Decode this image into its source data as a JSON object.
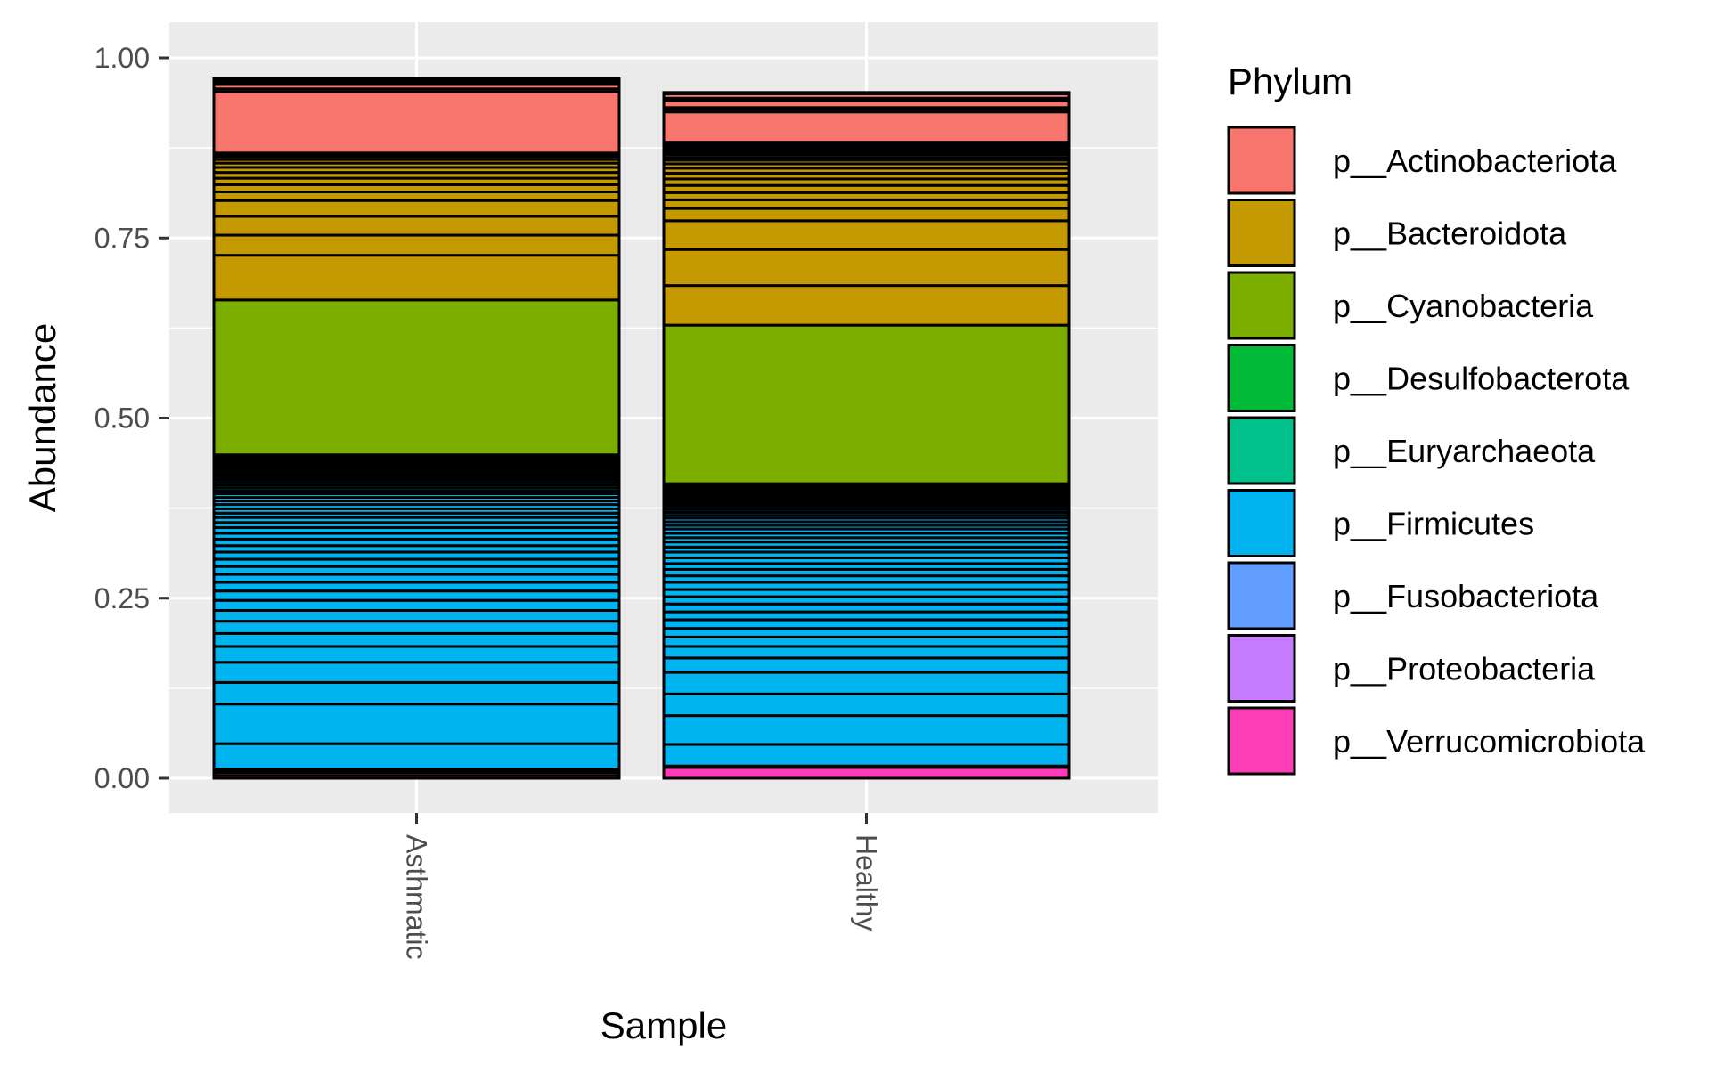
{
  "chart_data": {
    "type": "bar",
    "stacked": true,
    "xlabel": "Sample",
    "ylabel": "Abundance",
    "ylim": [
      0,
      1
    ],
    "yticks": [
      "0.00",
      "0.25",
      "0.50",
      "0.75",
      "1.00"
    ],
    "categories": [
      "Asthmatic",
      "Healthy"
    ],
    "grid": true,
    "legend": {
      "title": "Phylum",
      "position": "right",
      "entries": [
        {
          "name": "p__Actinobacteriota",
          "color": "#F8766D"
        },
        {
          "name": "p__Bacteroidota",
          "color": "#C49A00"
        },
        {
          "name": "p__Cyanobacteria",
          "color": "#7CAE00"
        },
        {
          "name": "p__Desulfobacterota",
          "color": "#00BA38"
        },
        {
          "name": "p__Euryarchaeota",
          "color": "#00C08B"
        },
        {
          "name": "p__Firmicutes",
          "color": "#00B4EF"
        },
        {
          "name": "p__Fusobacteriota",
          "color": "#619CFF"
        },
        {
          "name": "p__Proteobacteria",
          "color": "#C77CFF"
        },
        {
          "name": "p__Verrucomicrobiota",
          "color": "#FF3DB8"
        }
      ]
    },
    "series": [
      {
        "sample": "Asthmatic",
        "segments": [
          {
            "phylum": "p__Verrucomicrobiota",
            "values": [
              0.004,
              0.004,
              0.003
            ]
          },
          {
            "phylum": "p__Proteobacteria",
            "values": [
              0.001
            ]
          },
          {
            "phylum": "p__Fusobacteriota",
            "values": [
              0.001
            ]
          },
          {
            "phylum": "p__Firmicutes",
            "values": [
              0.035,
              0.055,
              0.03,
              0.028,
              0.022,
              0.018,
              0.017,
              0.015,
              0.014,
              0.013,
              0.012,
              0.011,
              0.011,
              0.01,
              0.01,
              0.009,
              0.009,
              0.008,
              0.008,
              0.007,
              0.007,
              0.006,
              0.006,
              0.006,
              0.005,
              0.005,
              0.005,
              0.004,
              0.004,
              0.004,
              0.004,
              0.003,
              0.003,
              0.003,
              0.003,
              0.003,
              0.002,
              0.002,
              0.002,
              0.002,
              0.002,
              0.002,
              0.001,
              0.001,
              0.001,
              0.001,
              0.001,
              0.001
            ]
          },
          {
            "phylum": "p__Euryarchaeota",
            "values": [
              0.002
            ]
          },
          {
            "phylum": "p__Desulfobacterota",
            "values": [
              0.003
            ]
          },
          {
            "phylum": "p__Cyanobacteria",
            "values": [
              0.215
            ]
          },
          {
            "phylum": "p__Bacteroidota",
            "values": [
              0.062,
              0.028,
              0.026,
              0.022,
              0.012,
              0.01,
              0.009,
              0.008,
              0.007,
              0.006,
              0.005,
              0.004,
              0.003,
              0.002
            ]
          },
          {
            "phylum": "p__Actinobacteriota",
            "values": [
              0.085,
              0.004,
              0.006,
              0.003,
              0.003,
              0.002
            ]
          }
        ]
      },
      {
        "sample": "Healthy",
        "segments": [
          {
            "phylum": "p__Verrucomicrobiota",
            "values": [
              0.015
            ]
          },
          {
            "phylum": "p__Proteobacteria",
            "values": [
              0.001
            ]
          },
          {
            "phylum": "p__Fusobacteriota",
            "values": [
              0.001
            ]
          },
          {
            "phylum": "p__Firmicutes",
            "values": [
              0.03,
              0.04,
              0.03,
              0.03,
              0.02,
              0.016,
              0.013,
              0.012,
              0.012,
              0.011,
              0.011,
              0.01,
              0.01,
              0.01,
              0.009,
              0.009,
              0.008,
              0.008,
              0.008,
              0.007,
              0.007,
              0.006,
              0.006,
              0.006,
              0.005,
              0.005,
              0.005,
              0.004,
              0.004,
              0.004,
              0.004,
              0.003,
              0.003,
              0.003,
              0.003,
              0.002,
              0.002,
              0.002,
              0.002,
              0.002,
              0.001,
              0.001,
              0.001,
              0.001,
              0.001
            ]
          },
          {
            "phylum": "p__Euryarchaeota",
            "values": [
              0.002
            ]
          },
          {
            "phylum": "p__Desulfobacterota",
            "values": [
              0.003
            ]
          },
          {
            "phylum": "p__Cyanobacteria",
            "values": [
              0.22
            ]
          },
          {
            "phylum": "p__Bacteroidota",
            "values": [
              0.055,
              0.05,
              0.04,
              0.017,
              0.012,
              0.01,
              0.01,
              0.009,
              0.008,
              0.007,
              0.006,
              0.005,
              0.004,
              0.004,
              0.003,
              0.003,
              0.003,
              0.002,
              0.002,
              0.002,
              0.002
            ]
          },
          {
            "phylum": "p__Actinobacteriota",
            "values": [
              0.042,
              0.002,
              0.002,
              0.002,
              0.01,
              0.003,
              0.006,
              0.002
            ]
          }
        ]
      }
    ]
  }
}
